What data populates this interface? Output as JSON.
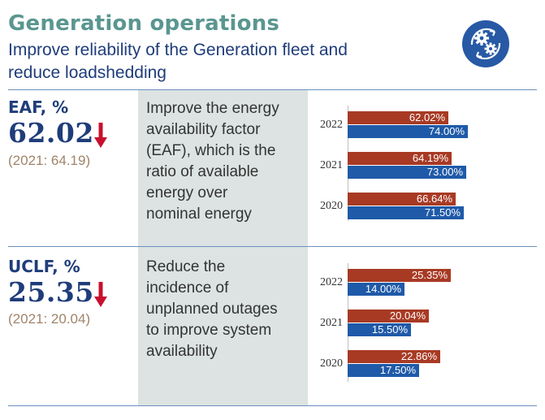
{
  "header": {
    "title": "Generation operations",
    "subtitle_line1": "Improve reliability of the Generation fleet and",
    "subtitle_line2": "reduce loadshedding",
    "icon": "gears-icon"
  },
  "colors": {
    "title": "#5a9690",
    "navy": "#1f3d7a",
    "bar_red": "#a83a24",
    "bar_blue": "#1f5aa8",
    "arrow": "#c8102e",
    "shade": "#dce3e2"
  },
  "metrics": [
    {
      "name": "EAF, %",
      "value": "62.02",
      "trend": "down",
      "prior": "(2021: 64.19)",
      "description_lines": [
        "Improve the energy",
        "availability factor",
        "(EAF), which is the",
        "ratio of available",
        "energy over",
        "nominal energy"
      ]
    },
    {
      "name": "UCLF, %",
      "value": "25.35",
      "trend": "down",
      "prior": "(2021: 20.04)",
      "description_lines": [
        "Reduce the",
        "incidence of",
        "unplanned outages",
        "to improve system",
        "availability"
      ]
    }
  ],
  "chart_data": [
    {
      "type": "bar",
      "orientation": "horizontal",
      "categories": [
        "2022",
        "2021",
        "2020"
      ],
      "series": [
        {
          "values": [
            62.02,
            64.19,
            66.64
          ],
          "labels": [
            "62.02%",
            "64.19%",
            "66.64%"
          ],
          "color": "#a83a24"
        },
        {
          "values": [
            74.0,
            73.0,
            71.5
          ],
          "labels": [
            "74.00%",
            "73.00%",
            "71.50%"
          ],
          "color": "#1f5aa8"
        }
      ],
      "xlim": [
        0,
        100
      ]
    },
    {
      "type": "bar",
      "orientation": "horizontal",
      "categories": [
        "2022",
        "2021",
        "2020"
      ],
      "series": [
        {
          "values": [
            25.35,
            20.04,
            22.86
          ],
          "labels": [
            "25.35%",
            "20.04%",
            "22.86%"
          ],
          "color": "#a83a24"
        },
        {
          "values": [
            14.0,
            15.5,
            17.5
          ],
          "labels": [
            "14.00%",
            "15.50%",
            "17.50%"
          ],
          "color": "#1f5aa8"
        }
      ],
      "xlim": [
        0,
        40
      ]
    }
  ]
}
